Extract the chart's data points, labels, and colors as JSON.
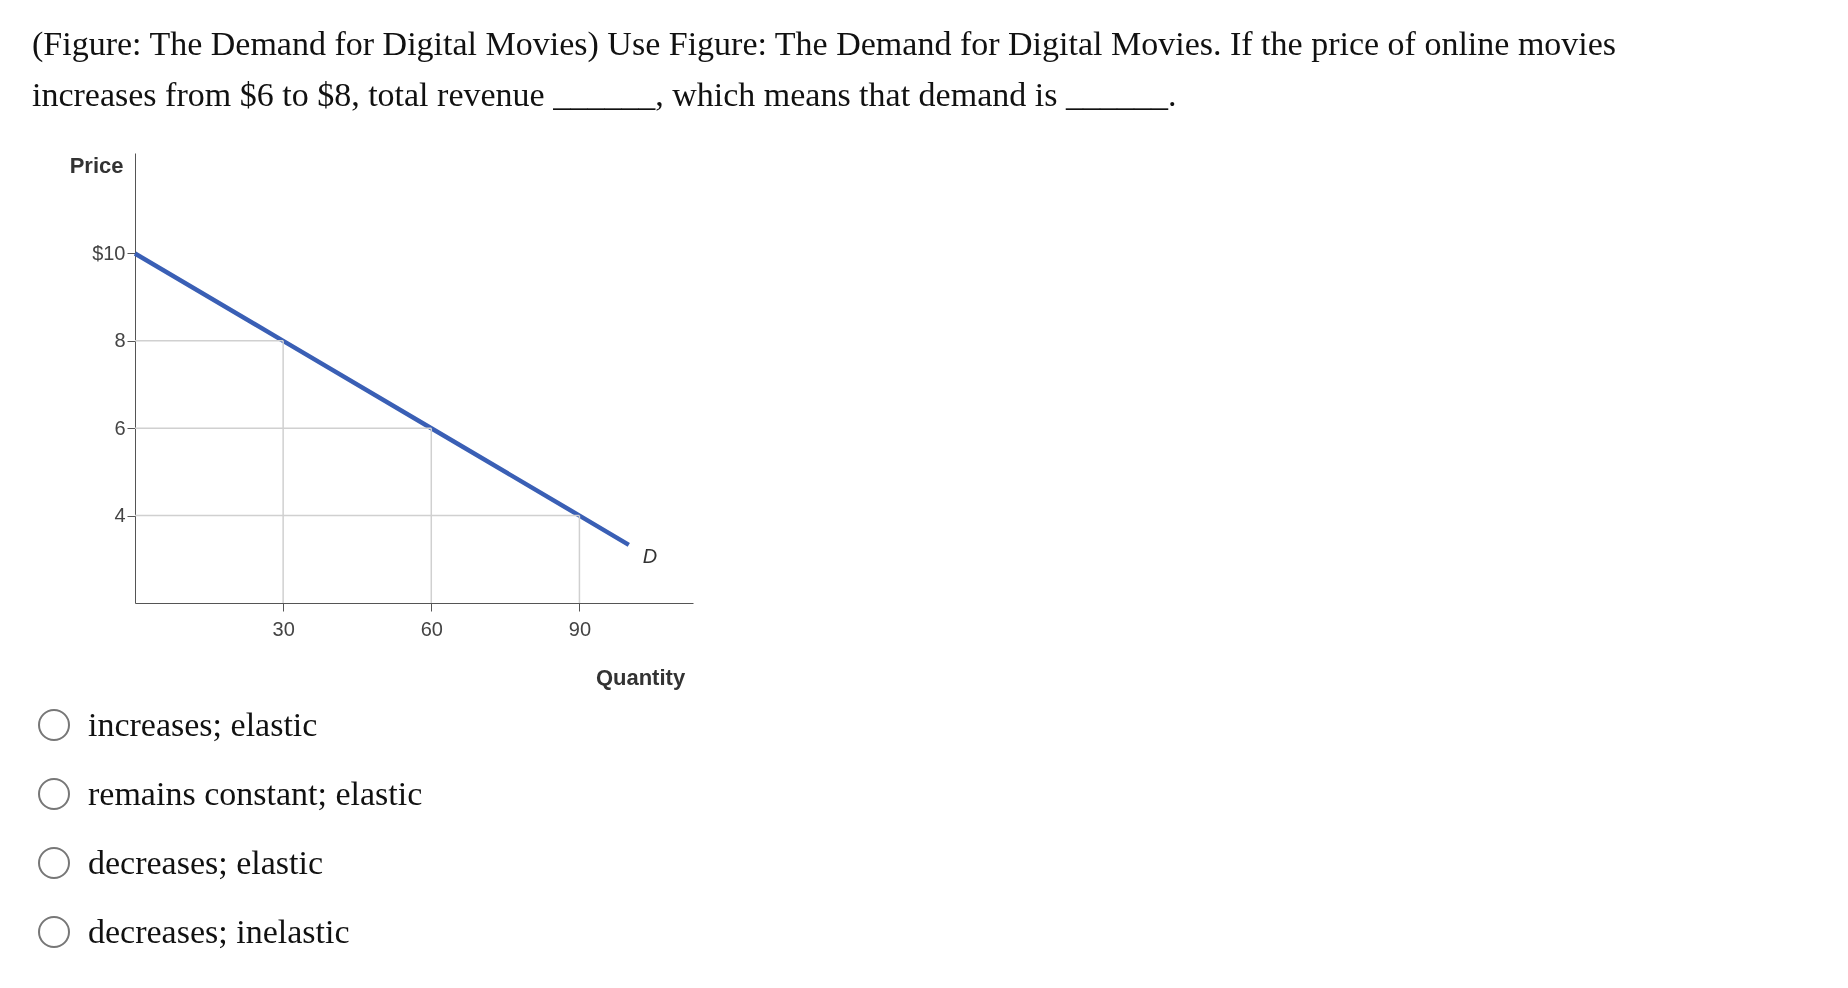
{
  "chart_data": {
    "type": "line",
    "title": "(Figure: The Demand for Digital Movies) Use Figure: The Demand for Digital Movies. If the price of online movies increases from $6 to $8, total revenue ______, which means that demand is ______.",
    "xlabel": "Quantity",
    "ylabel": "Price",
    "x": [
      0,
      30,
      60,
      90,
      100
    ],
    "series": [
      {
        "name": "D",
        "color": "#3a5fb5",
        "values": [
          10,
          8,
          6,
          4,
          3.33
        ]
      }
    ],
    "xlim": [
      0,
      113
    ],
    "ylim": [
      2,
      12.3
    ],
    "xticks": [
      30,
      60,
      90
    ],
    "yticks": [
      4,
      6,
      8,
      {
        "value": 10,
        "label": "$10"
      }
    ],
    "ref_lines": [
      {
        "axis": "x",
        "value": 30,
        "color": "#d0d0d0"
      },
      {
        "axis": "x",
        "value": 60,
        "color": "#d0d0d0"
      },
      {
        "axis": "x",
        "value": 90,
        "color": "#d0d0d0"
      },
      {
        "axis": "y",
        "value": 8,
        "color": "#d0d0d0"
      },
      {
        "axis": "y",
        "value": 6,
        "color": "#d0d0d0"
      },
      {
        "axis": "y",
        "value": 4,
        "color": "#d0d0d0"
      }
    ],
    "annotations": [
      "increases; elastic",
      "remains constant; elastic",
      "decreases; elastic",
      "decreases; inelastic"
    ],
    "marker": "none",
    "line_style": "solid"
  }
}
